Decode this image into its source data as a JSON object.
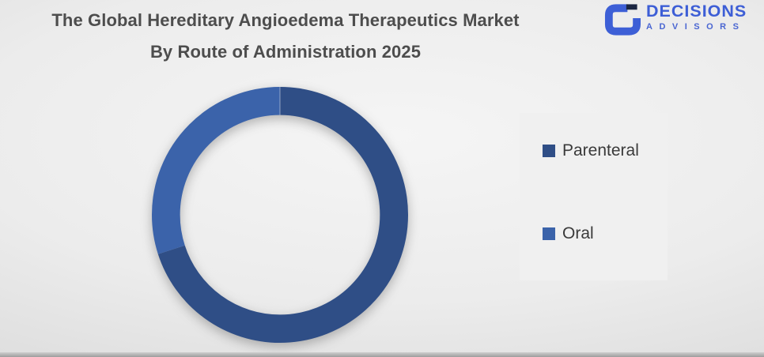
{
  "title": {
    "line1": "The Global Hereditary Angioedema Therapeutics Market",
    "line2": "By Route of Administration 2025"
  },
  "logo": {
    "name": "DECISIONS",
    "subname": "ADVISORS",
    "brand_color": "#3d5ed6",
    "icon_dark_color": "#1b2642"
  },
  "legend": {
    "items": [
      {
        "label": "Parenteral",
        "color": "#2f4e86"
      },
      {
        "label": "Oral",
        "color": "#3b63aa"
      }
    ]
  },
  "chart_data": {
    "type": "pie",
    "subtype": "donut",
    "title": "The Global Hereditary Angioedema Therapeutics Market By Route of Administration 2025",
    "categories": [
      "Parenteral",
      "Oral"
    ],
    "values": [
      70,
      30
    ],
    "values_note": "percent share estimated from arc angles; no data labels shown in chart",
    "colors": [
      "#2f4e86",
      "#3b63aa"
    ],
    "start_angle_deg": 0,
    "direction": "clockwise",
    "inner_radius_ratio": 0.78,
    "legend_position": "right",
    "data_labels": false,
    "grid": false
  }
}
